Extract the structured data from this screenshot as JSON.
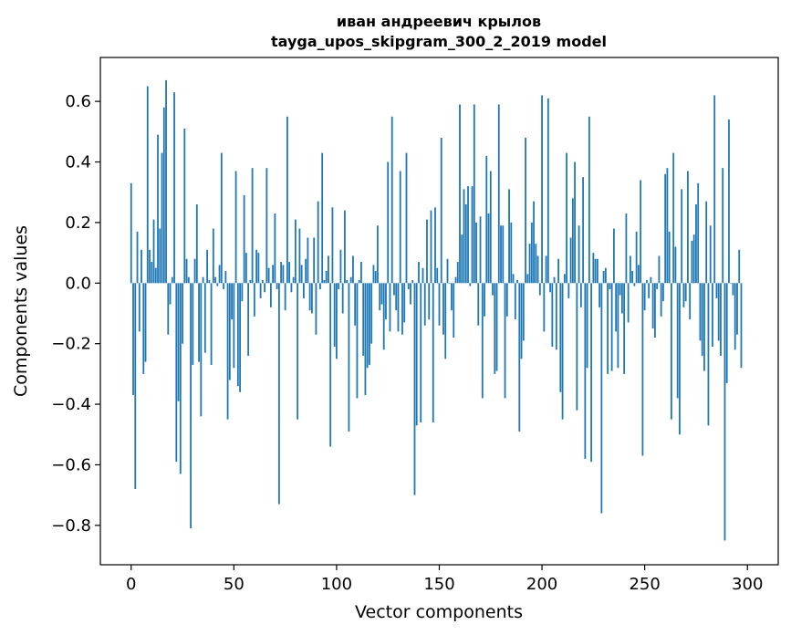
{
  "chart_data": {
    "type": "bar",
    "title": "иван андреевич крылов",
    "subtitle": "tayga_upos_skipgram_300_2_2019 model",
    "xlabel": "Vector components",
    "ylabel": "Components values",
    "xlim": [
      -15,
      315
    ],
    "ylim": [
      -0.93,
      0.745
    ],
    "xticks": [
      0,
      50,
      100,
      150,
      200,
      250,
      300
    ],
    "xtick_labels": [
      "0",
      "50",
      "100",
      "150",
      "200",
      "250",
      "300"
    ],
    "yticks": [
      -0.8,
      -0.6,
      -0.4,
      -0.2,
      0.0,
      0.2,
      0.4,
      0.6
    ],
    "ytick_labels": [
      "−0.8",
      "−0.6",
      "−0.4",
      "−0.2",
      "0.0",
      "0.2",
      "0.4",
      "0.6"
    ],
    "grid": false,
    "bar_color": "#1f77b4",
    "x": "0..299",
    "values": [
      0.33,
      -0.37,
      -0.68,
      0.17,
      -0.16,
      0.11,
      -0.3,
      -0.26,
      0.65,
      0.11,
      0.07,
      0.21,
      0.05,
      0.49,
      0.18,
      0.43,
      0.58,
      0.67,
      -0.17,
      -0.07,
      0.02,
      0.63,
      -0.59,
      -0.39,
      -0.63,
      -0.2,
      0.51,
      0.08,
      0.02,
      -0.81,
      -0.27,
      0.08,
      0.26,
      -0.26,
      -0.44,
      0.02,
      -0.23,
      0.11,
      0.01,
      -0.27,
      0.18,
      0.02,
      -0.01,
      0.06,
      0.43,
      -0.02,
      0.04,
      -0.45,
      -0.32,
      -0.12,
      -0.28,
      0.37,
      -0.34,
      -0.36,
      -0.06,
      0.29,
      0.1,
      -0.24,
      0.01,
      0.38,
      -0.11,
      0.11,
      0.1,
      -0.05,
      0.01,
      -0.03,
      0.38,
      0.05,
      -0.08,
      0.06,
      0.23,
      -0.02,
      -0.73,
      0.07,
      0.06,
      -0.09,
      0.55,
      0.07,
      -0.03,
      0.02,
      0.21,
      -0.45,
      0.18,
      0.06,
      -0.05,
      0.08,
      0.15,
      -0.09,
      -0.1,
      0.15,
      -0.17,
      0.27,
      -0.02,
      0.43,
      0.01,
      0.04,
      0.09,
      -0.54,
      0.25,
      -0.21,
      -0.25,
      -0.02,
      0.11,
      -0.1,
      0.24,
      0.01,
      -0.49,
      0.02,
      0.09,
      -0.14,
      -0.38,
      0.01,
      0.07,
      -0.24,
      -0.37,
      -0.28,
      -0.27,
      -0.2,
      0.06,
      0.04,
      0.19,
      -0.09,
      -0.07,
      -0.22,
      -0.12,
      0.4,
      -0.16,
      0.55,
      -0.04,
      -0.09,
      -0.16,
      0.37,
      -0.17,
      -0.13,
      0.43,
      -0.02,
      -0.07,
      0.01,
      -0.7,
      -0.47,
      0.07,
      -0.46,
      0.05,
      -0.14,
      0.21,
      -0.12,
      0.24,
      -0.46,
      0.25,
      0.05,
      -0.14,
      0.48,
      -0.17,
      -0.25,
      0.08,
      0.0,
      -0.09,
      -0.18,
      0.02,
      0.07,
      0.59,
      0.16,
      0.31,
      0.26,
      0.32,
      -0.01,
      0.32,
      0.59,
      0.2,
      -0.14,
      0.22,
      -0.38,
      -0.11,
      0.42,
      0.23,
      0.37,
      -0.04,
      -0.3,
      -0.29,
      0.59,
      0.19,
      0.19,
      -0.38,
      -0.11,
      0.31,
      0.2,
      0.03,
      -0.12,
      0.01,
      -0.49,
      -0.25,
      -0.19,
      0.48,
      0.03,
      0.13,
      0.2,
      0.27,
      0.13,
      0.09,
      -0.04,
      0.62,
      -0.16,
      0.09,
      0.61,
      -0.03,
      -0.21,
      0.02,
      -0.22,
      0.08,
      -0.36,
      -0.45,
      0.03,
      0.43,
      -0.05,
      0.15,
      0.28,
      0.4,
      -0.42,
      0.19,
      -0.08,
      0.35,
      -0.58,
      -0.28,
      0.55,
      -0.59,
      0.1,
      0.08,
      0.08,
      -0.08,
      -0.76,
      0.04,
      0.05,
      -0.3,
      -0.02,
      -0.29,
      0.18,
      -0.16,
      -0.28,
      -0.04,
      -0.1,
      -0.3,
      0.23,
      -0.13,
      0.09,
      0.04,
      -0.01,
      0.17,
      0.06,
      0.34,
      -0.57,
      -0.09,
      0.01,
      -0.05,
      0.02,
      -0.15,
      -0.18,
      -0.02,
      0.09,
      -0.11,
      -0.06,
      0.36,
      0.38,
      0.17,
      -0.45,
      0.43,
      0.12,
      -0.38,
      -0.5,
      0.31,
      -0.08,
      -0.06,
      0.37,
      -0.12,
      0.14,
      0.16,
      0.26,
      0.33,
      -0.19,
      -0.24,
      -0.29,
      0.27,
      -0.47,
      0.19,
      -0.21,
      0.62,
      -0.05,
      -0.19,
      -0.24,
      0.38,
      -0.85,
      -0.33,
      0.54,
      0.0,
      -0.04,
      -0.22,
      -0.17,
      0.11,
      -0.28
    ]
  }
}
